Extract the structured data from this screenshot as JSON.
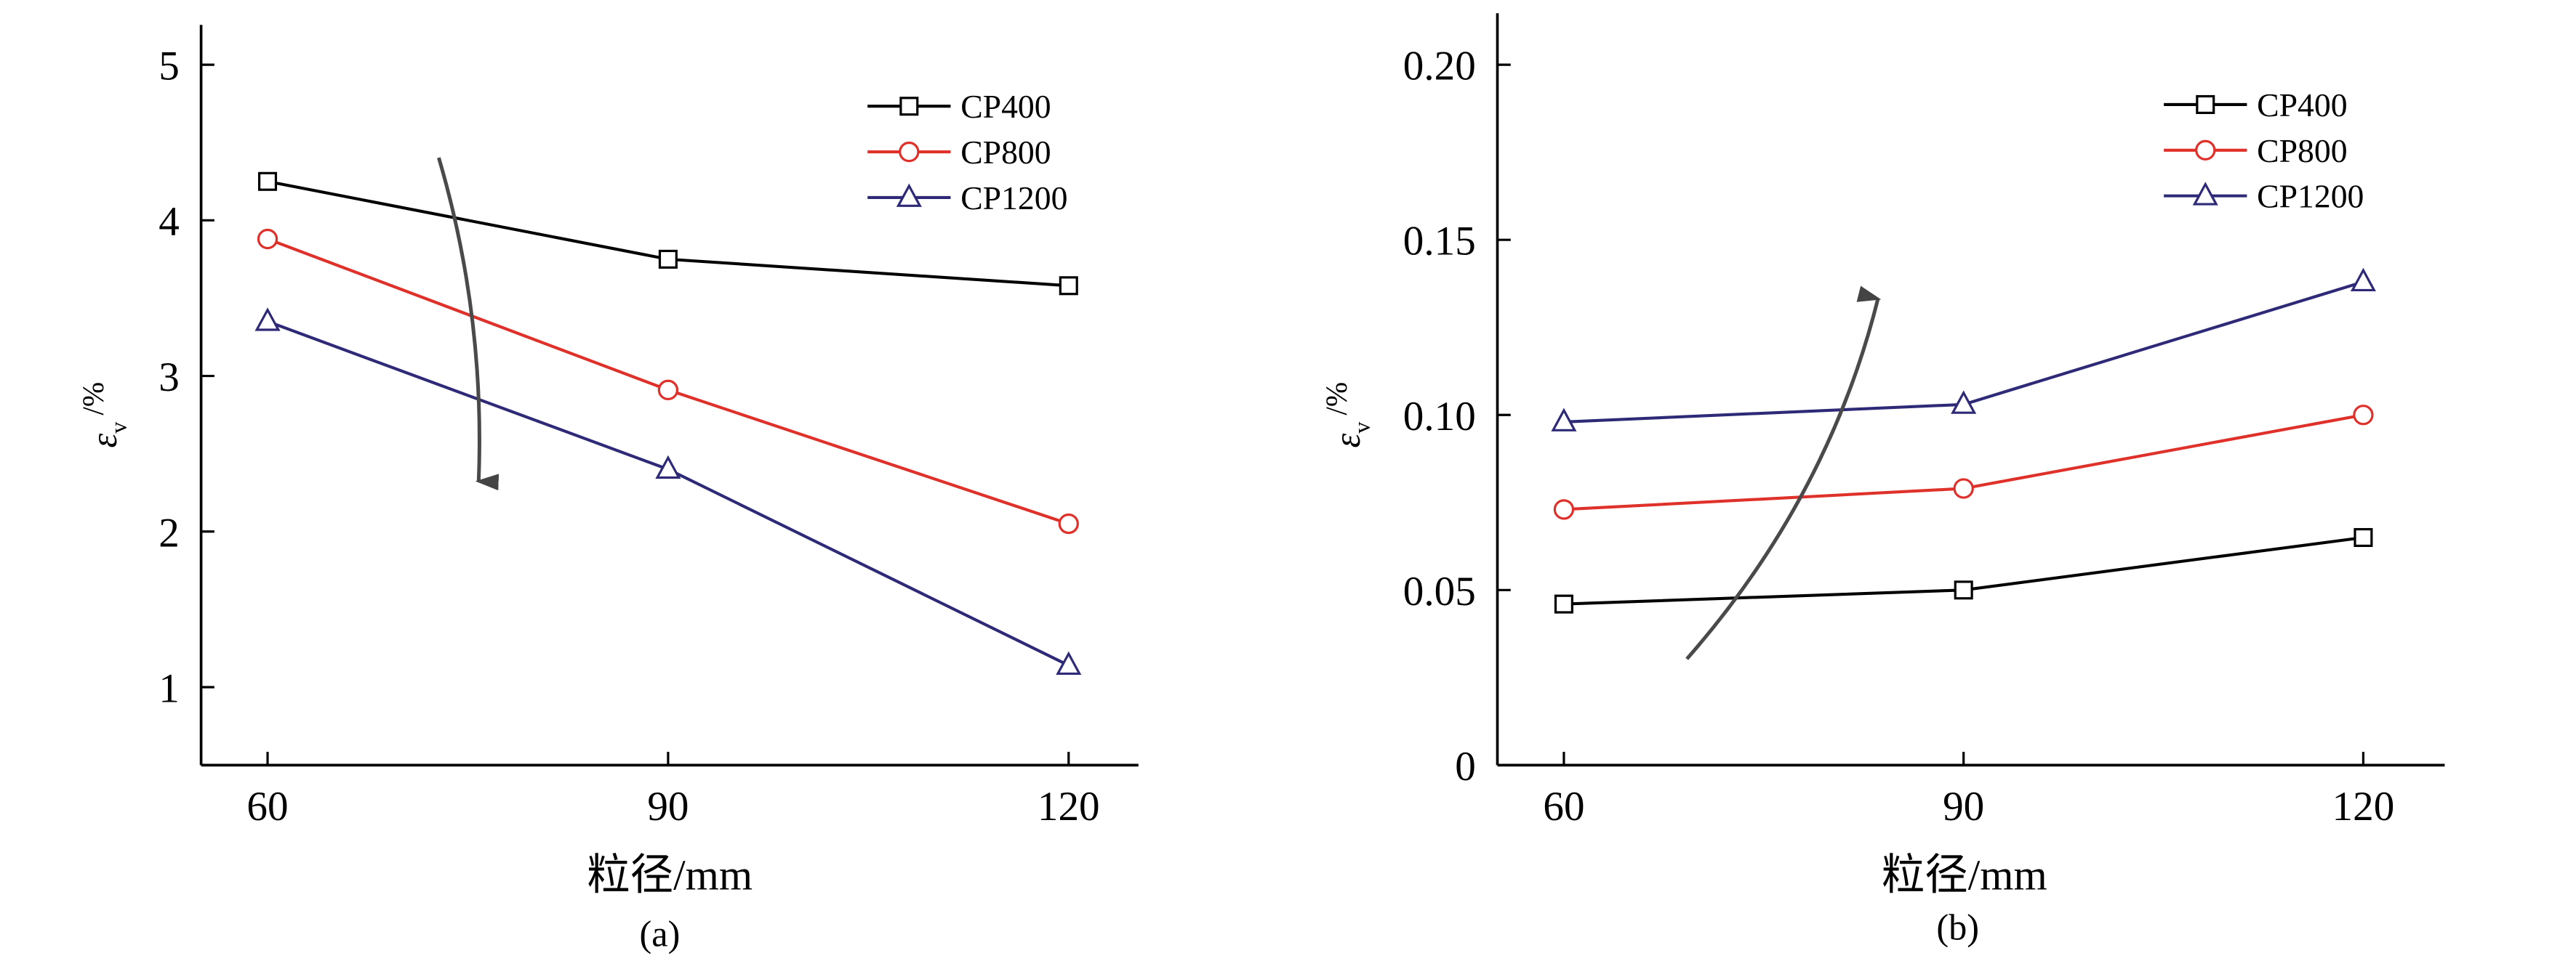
{
  "chart_data": [
    {
      "type": "line",
      "panel_label": "(a)",
      "title": "",
      "xlabel": "粒径/mm",
      "ylabel_symbol": "ε",
      "ylabel_subscript": "v",
      "ylabel_unit": "/%",
      "x": [
        60,
        90,
        120
      ],
      "x_ticks": [
        "60",
        "90",
        "120"
      ],
      "y_ticks": [
        "1",
        "2",
        "3",
        "4",
        "5"
      ],
      "y_tick_values": [
        1,
        2,
        3,
        4,
        5
      ],
      "xlim": [
        55,
        127
      ],
      "ylim": [
        0.5,
        5.25
      ],
      "grid": false,
      "legend_position": "top-right",
      "annotation": "curved arrow pointing downward across series (increasing CP)",
      "arrow_direction": "down",
      "series": [
        {
          "name": "CP400",
          "color": "#000000",
          "marker": "square",
          "values": [
            4.25,
            3.75,
            3.58
          ]
        },
        {
          "name": "CP800",
          "color": "#e0302a",
          "marker": "circle",
          "values": [
            3.88,
            2.91,
            2.05
          ]
        },
        {
          "name": "CP1200",
          "color": "#2e2a78",
          "marker": "triangle",
          "values": [
            3.35,
            2.4,
            1.14
          ]
        }
      ]
    },
    {
      "type": "line",
      "panel_label": "(b)",
      "title": "",
      "xlabel": "粒径/mm",
      "ylabel_symbol": "ε",
      "ylabel_subscript": "v",
      "ylabel_unit": "/%",
      "x": [
        60,
        90,
        120
      ],
      "x_ticks": [
        "60",
        "90",
        "120"
      ],
      "y_ticks": [
        "0",
        "0.05",
        "0.10",
        "0.15",
        "0.20"
      ],
      "y_tick_values": [
        0,
        0.05,
        0.1,
        0.15,
        0.2
      ],
      "xlim": [
        55,
        127
      ],
      "ylim": [
        0,
        0.215
      ],
      "grid": false,
      "legend_position": "top-right",
      "annotation": "curved arrow pointing upward across series (increasing CP)",
      "arrow_direction": "up",
      "series": [
        {
          "name": "CP400",
          "color": "#000000",
          "marker": "square",
          "values": [
            0.046,
            0.05,
            0.065
          ]
        },
        {
          "name": "CP800",
          "color": "#e0302a",
          "marker": "circle",
          "values": [
            0.073,
            0.079,
            0.1
          ]
        },
        {
          "name": "CP1200",
          "color": "#2e2a78",
          "marker": "triangle",
          "values": [
            0.098,
            0.103,
            0.138
          ]
        }
      ]
    }
  ]
}
